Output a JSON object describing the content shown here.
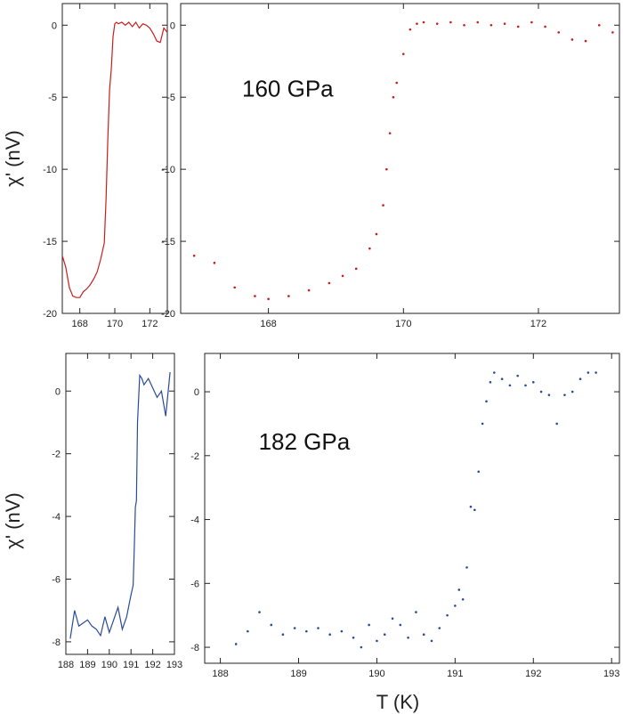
{
  "figure": {
    "ylabel": "χ' (nV)",
    "xlabel": "T (K)"
  },
  "chart_data": [
    {
      "id": "top-small",
      "type": "line",
      "color": "#c81e1e",
      "xlim": [
        167,
        173
      ],
      "ylim": [
        -20,
        1.5
      ],
      "xticks": [
        168,
        170,
        172
      ],
      "yticks": [
        0,
        -5,
        -10,
        -15,
        -20
      ],
      "series": [
        {
          "x": [
            167.0,
            167.2,
            167.4,
            167.6,
            167.8,
            168.0,
            168.2,
            168.4,
            168.6,
            168.8,
            169.0,
            169.2,
            169.4,
            169.5,
            169.6,
            169.7,
            169.8,
            169.9,
            170.0,
            170.1,
            170.2,
            170.4,
            170.6,
            170.8,
            171.0,
            171.2,
            171.4,
            171.6,
            171.8,
            172.0,
            172.2,
            172.4,
            172.6,
            172.8,
            173.0
          ],
          "y": [
            -16.0,
            -16.8,
            -18.2,
            -18.8,
            -18.9,
            -18.9,
            -18.5,
            -18.3,
            -18.0,
            -17.6,
            -17.1,
            -16.2,
            -15.1,
            -12.0,
            -8.0,
            -4.5,
            -3.0,
            -0.8,
            0.1,
            0.2,
            0.1,
            0.2,
            0.0,
            0.2,
            -0.1,
            0.2,
            -0.2,
            0.1,
            0.0,
            -0.2,
            -0.6,
            -1.1,
            -1.2,
            -0.2,
            -0.5
          ]
        }
      ]
    },
    {
      "id": "top-main",
      "type": "scatter",
      "color": "#c81e1e",
      "label": "160 GPa",
      "xlim": [
        166.7,
        173.2
      ],
      "ylim": [
        -20,
        1.5
      ],
      "xticks": [
        168,
        170,
        172
      ],
      "yticks": [
        0,
        -5,
        -10,
        -15,
        -20
      ],
      "series": [
        {
          "x": [
            166.9,
            167.2,
            167.5,
            167.8,
            168.0,
            168.3,
            168.6,
            168.9,
            169.1,
            169.3,
            169.5,
            169.6,
            169.7,
            169.75,
            169.8,
            169.85,
            169.9,
            170.0,
            170.1,
            170.2,
            170.3,
            170.5,
            170.7,
            170.9,
            171.1,
            171.3,
            171.5,
            171.7,
            171.9,
            172.1,
            172.3,
            172.5,
            172.7,
            172.9,
            173.1
          ],
          "y": [
            -16.0,
            -16.5,
            -18.2,
            -18.8,
            -19.0,
            -18.8,
            -18.4,
            -17.9,
            -17.4,
            -16.9,
            -15.5,
            -14.5,
            -12.5,
            -10.0,
            -7.5,
            -5.0,
            -4.0,
            -2.0,
            -0.3,
            0.1,
            0.2,
            0.1,
            0.2,
            0.0,
            0.2,
            0.0,
            0.1,
            -0.1,
            0.2,
            -0.1,
            -0.5,
            -1.0,
            -1.1,
            0.0,
            -0.5
          ]
        }
      ]
    },
    {
      "id": "bottom-small",
      "type": "line",
      "color": "#2a4b9a",
      "xlim": [
        188,
        193
      ],
      "ylim": [
        -8.4,
        1.2
      ],
      "xticks": [
        188,
        189,
        190,
        191,
        192,
        193
      ],
      "yticks": [
        0,
        -2,
        -4,
        -6,
        -8
      ],
      "series": [
        {
          "x": [
            188.2,
            188.4,
            188.6,
            188.8,
            189.0,
            189.2,
            189.4,
            189.6,
            189.8,
            190.0,
            190.2,
            190.4,
            190.6,
            190.8,
            191.0,
            191.1,
            191.15,
            191.2,
            191.25,
            191.3,
            191.4,
            191.5,
            191.6,
            191.8,
            192.0,
            192.2,
            192.4,
            192.6,
            192.8
          ],
          "y": [
            -7.9,
            -7.0,
            -7.5,
            -7.4,
            -7.3,
            -7.5,
            -7.6,
            -7.8,
            -7.2,
            -7.7,
            -7.3,
            -6.9,
            -7.6,
            -7.2,
            -6.5,
            -6.2,
            -5.0,
            -3.7,
            -3.5,
            -1.0,
            0.5,
            0.4,
            0.2,
            0.4,
            0.1,
            -0.2,
            0.0,
            -0.8,
            0.6
          ]
        }
      ]
    },
    {
      "id": "bottom-main",
      "type": "scatter",
      "color": "#2a4b9a",
      "label": "182 GPa",
      "xlim": [
        187.8,
        193.1
      ],
      "ylim": [
        -8.5,
        1.2
      ],
      "xticks": [
        188,
        189,
        190,
        191,
        192,
        193
      ],
      "yticks": [
        0,
        -2,
        -4,
        -6,
        -8
      ],
      "xlabel": "T (K)",
      "series": [
        {
          "x": [
            188.2,
            188.35,
            188.5,
            188.65,
            188.8,
            188.95,
            189.1,
            189.25,
            189.4,
            189.55,
            189.7,
            189.8,
            189.9,
            190.0,
            190.1,
            190.2,
            190.3,
            190.4,
            190.5,
            190.6,
            190.7,
            190.8,
            190.9,
            191.0,
            191.05,
            191.1,
            191.15,
            191.2,
            191.25,
            191.3,
            191.35,
            191.4,
            191.45,
            191.5,
            191.6,
            191.7,
            191.8,
            191.9,
            192.0,
            192.1,
            192.2,
            192.3,
            192.4,
            192.5,
            192.6,
            192.7,
            192.8
          ],
          "y": [
            -7.9,
            -7.5,
            -6.9,
            -7.3,
            -7.6,
            -7.4,
            -7.5,
            -7.4,
            -7.6,
            -7.5,
            -7.7,
            -8.0,
            -7.3,
            -7.8,
            -7.6,
            -7.1,
            -7.3,
            -7.7,
            -6.9,
            -7.6,
            -7.8,
            -7.4,
            -7.0,
            -6.7,
            -6.2,
            -6.5,
            -5.5,
            -3.6,
            -3.7,
            -2.5,
            -1.0,
            -0.3,
            0.3,
            0.6,
            0.4,
            0.2,
            0.5,
            0.2,
            0.3,
            0.0,
            -0.1,
            -1.0,
            -0.1,
            0.0,
            0.4,
            0.6,
            0.6
          ]
        }
      ]
    }
  ]
}
